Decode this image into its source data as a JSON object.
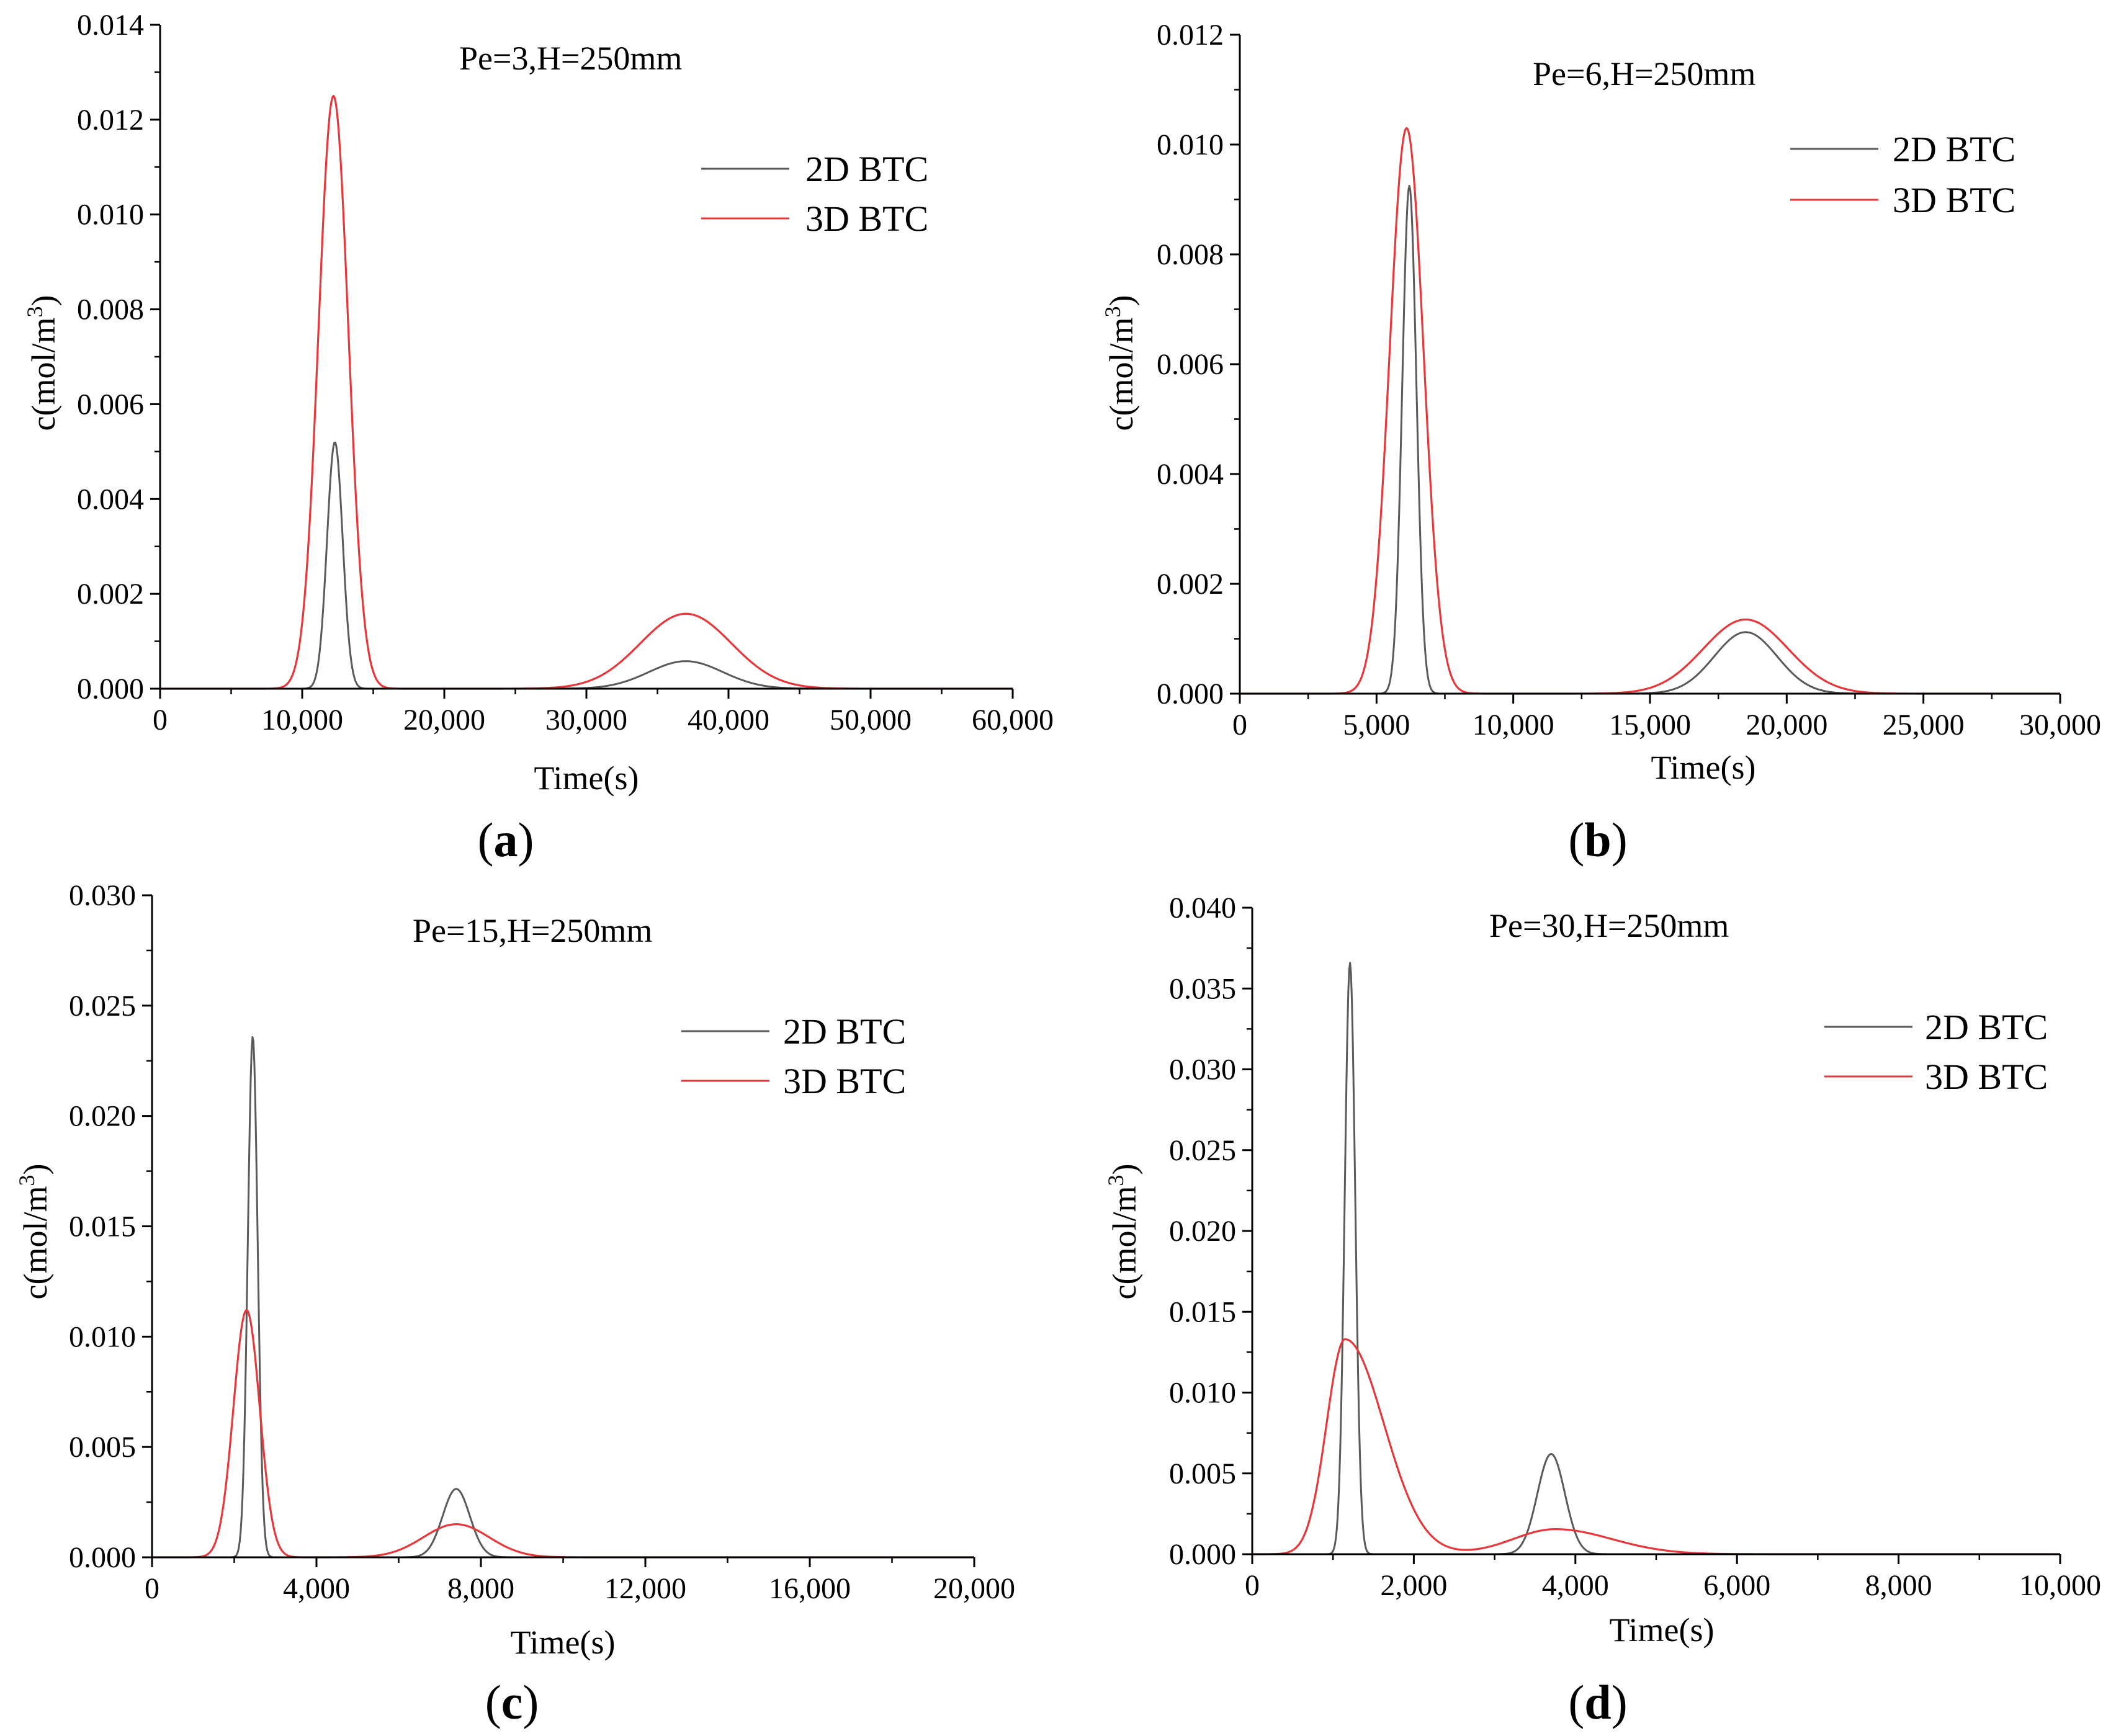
{
  "chart_data": [
    {
      "id": "a",
      "type": "line",
      "panel_label": "a",
      "annotation": "Pe=3,H=250mm",
      "xlabel": "Time(s)",
      "ylabel_main": "c(mol/m",
      "ylabel_sup": "3",
      "ylabel_end": ")",
      "xlim": [
        0,
        60000
      ],
      "ylim": [
        0,
        0.014
      ],
      "xticks": [
        0,
        10000,
        20000,
        30000,
        40000,
        50000,
        60000
      ],
      "xtick_labels": [
        "0",
        "10,000",
        "20,000",
        "30,000",
        "40,000",
        "50,000",
        "60,000"
      ],
      "yticks": [
        0,
        0.002,
        0.004,
        0.006,
        0.008,
        0.01,
        0.012,
        0.014
      ],
      "ytick_labels": [
        "0.000",
        "0.002",
        "0.004",
        "0.006",
        "0.008",
        "0.010",
        "0.012",
        "0.014"
      ],
      "legend": [
        "2D BTC",
        "3D BTC"
      ],
      "series": [
        {
          "name": "2D BTC",
          "color": "#5a5a5a",
          "peaks": [
            {
              "center": 12300,
              "height": 0.0052,
              "sigma": 550
            },
            {
              "center": 37000,
              "height": 0.00058,
              "sigma": 2600
            }
          ]
        },
        {
          "name": "3D BTC",
          "color": "#e8373a",
          "peaks": [
            {
              "center": 12200,
              "height": 0.0125,
              "sigma": 1050
            },
            {
              "center": 37000,
              "height": 0.00158,
              "sigma": 3200
            }
          ]
        }
      ]
    },
    {
      "id": "b",
      "type": "line",
      "panel_label": "b",
      "annotation": "Pe=6,H=250mm",
      "xlabel": "Time(s)",
      "ylabel_main": "c(mol/m",
      "ylabel_sup": "3",
      "ylabel_end": ")",
      "xlim": [
        0,
        30000
      ],
      "ylim": [
        0,
        0.012
      ],
      "xticks": [
        0,
        5000,
        10000,
        15000,
        20000,
        25000,
        30000
      ],
      "xtick_labels": [
        "0",
        "5,000",
        "10,000",
        "15,000",
        "20,000",
        "25,000",
        "30,000"
      ],
      "yticks": [
        0,
        0.002,
        0.004,
        0.006,
        0.008,
        0.01,
        0.012
      ],
      "ytick_labels": [
        "0.000",
        "0.002",
        "0.004",
        "0.006",
        "0.008",
        "0.010",
        "0.012"
      ],
      "legend": [
        "2D BTC",
        "3D BTC"
      ],
      "series": [
        {
          "name": "2D BTC",
          "color": "#5a5a5a",
          "peaks": [
            {
              "center": 6200,
              "height": 0.00925,
              "sigma": 260
            },
            {
              "center": 18500,
              "height": 0.00112,
              "sigma": 1150
            }
          ]
        },
        {
          "name": "3D BTC",
          "color": "#e8373a",
          "peaks": [
            {
              "center": 6100,
              "height": 0.0103,
              "sigma": 620
            },
            {
              "center": 18500,
              "height": 0.00135,
              "sigma": 1550
            }
          ]
        }
      ]
    },
    {
      "id": "c",
      "type": "line",
      "panel_label": "c",
      "annotation": "Pe=15,H=250mm",
      "xlabel": "Time(s)",
      "ylabel_main": "c(mol/m",
      "ylabel_sup": "3",
      "ylabel_end": ")",
      "xlim": [
        0,
        20000
      ],
      "ylim": [
        0,
        0.03
      ],
      "xticks": [
        0,
        4000,
        8000,
        12000,
        16000,
        20000
      ],
      "xtick_labels": [
        "0",
        "4,000",
        "8,000",
        "12,000",
        "16,000",
        "20,000"
      ],
      "yticks": [
        0,
        0.005,
        0.01,
        0.015,
        0.02,
        0.025,
        0.03
      ],
      "ytick_labels": [
        "0.000",
        "0.005",
        "0.010",
        "0.015",
        "0.020",
        "0.025",
        "0.030"
      ],
      "legend": [
        "2D BTC",
        "3D BTC"
      ],
      "series": [
        {
          "name": "2D BTC",
          "color": "#5a5a5a",
          "peaks": [
            {
              "center": 2450,
              "height": 0.0236,
              "sigma": 120
            },
            {
              "center": 7400,
              "height": 0.0031,
              "sigma": 330
            }
          ]
        },
        {
          "name": "3D BTC",
          "color": "#e8373a",
          "peaks": [
            {
              "center": 2300,
              "height": 0.0112,
              "sigma": 320
            },
            {
              "center": 7400,
              "height": 0.0015,
              "sigma": 800
            }
          ]
        }
      ]
    },
    {
      "id": "d",
      "type": "line",
      "panel_label": "d",
      "annotation": "Pe=30,H=250mm",
      "xlabel": "Time(s)",
      "ylabel_main": "c(mol/m",
      "ylabel_sup": "3",
      "ylabel_end": ")",
      "xlim": [
        0,
        10000
      ],
      "ylim": [
        0,
        0.04
      ],
      "xticks": [
        0,
        2000,
        4000,
        6000,
        8000,
        10000
      ],
      "xtick_labels": [
        "0",
        "2,000",
        "4,000",
        "6,000",
        "8,000",
        "10,000"
      ],
      "yticks": [
        0,
        0.005,
        0.01,
        0.015,
        0.02,
        0.025,
        0.03,
        0.035,
        0.04
      ],
      "ytick_labels": [
        "0.000",
        "0.005",
        "0.010",
        "0.015",
        "0.020",
        "0.025",
        "0.030",
        "0.035",
        "0.040"
      ],
      "legend": [
        "2D BTC",
        "3D BTC"
      ],
      "series": [
        {
          "name": "2D BTC",
          "color": "#5a5a5a",
          "peaks": [
            {
              "center": 1210,
              "height": 0.0366,
              "sigma": 65
            },
            {
              "center": 3700,
              "height": 0.0062,
              "sigma": 170
            }
          ]
        },
        {
          "name": "3D BTC",
          "color": "#e8373a",
          "peaks": [
            {
              "center": 1150,
              "height": 0.0133,
              "sigma": 230,
              "tail": 480
            },
            {
              "center": 3750,
              "height": 0.00155,
              "sigma": 520,
              "tail": 700
            }
          ]
        }
      ]
    }
  ]
}
